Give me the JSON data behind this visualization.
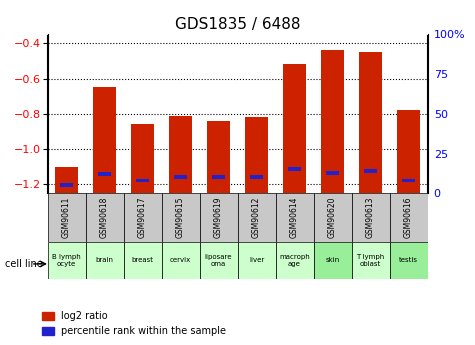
{
  "title": "GDS1835 / 6488",
  "samples": [
    "GSM90611",
    "GSM90618",
    "GSM90617",
    "GSM90615",
    "GSM90619",
    "GSM90612",
    "GSM90614",
    "GSM90620",
    "GSM90613",
    "GSM90616"
  ],
  "cell_lines": [
    "B lymph\nocyte",
    "brain",
    "breast",
    "cervix",
    "liposare\noma",
    "liver",
    "macroph\nage",
    "skin",
    "T lymph\noblast",
    "testis"
  ],
  "cell_line_colors": [
    "#ccffcc",
    "#ccffcc",
    "#ccffcc",
    "#ccffcc",
    "#ccffcc",
    "#ccffcc",
    "#ccffcc",
    "#99ee99",
    "#ccffcc",
    "#99ee99"
  ],
  "log2_ratio": [
    -1.1,
    -0.65,
    -0.86,
    -0.81,
    -0.84,
    -0.82,
    -0.52,
    -0.44,
    -0.45,
    -0.78
  ],
  "percentile_rank": [
    5,
    12,
    8,
    10,
    10,
    10,
    15,
    13,
    14,
    8
  ],
  "bar_color": "#cc2200",
  "blue_color": "#2222cc",
  "ylim_left": [
    -1.25,
    -0.35
  ],
  "yticks_left": [
    -1.2,
    -1.0,
    -0.8,
    -0.6,
    -0.4
  ],
  "yticks_right": [
    0,
    25,
    50,
    75,
    100
  ],
  "bar_width": 0.6,
  "legend_label_red": "log2 ratio",
  "legend_label_blue": "percentile rank within the sample",
  "cell_line_label": "cell line"
}
